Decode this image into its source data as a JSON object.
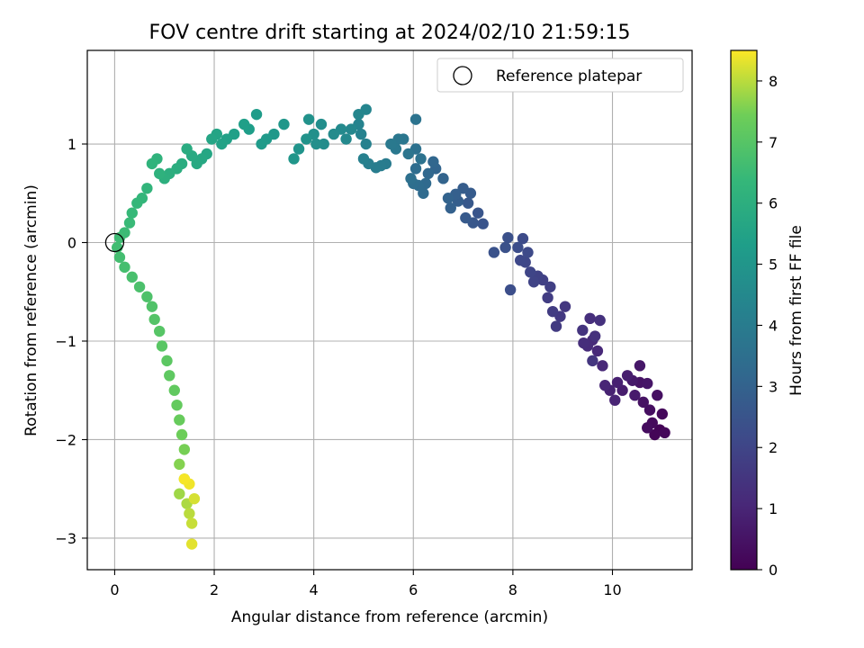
{
  "chart_data": {
    "type": "scatter",
    "title": "FOV centre drift starting at 2024/02/10 21:59:15",
    "xlabel": "Angular distance from reference (arcmin)",
    "ylabel": "Rotation from reference (arcmin)",
    "colorbar_label": "Hours from first FF file",
    "colormap": "viridis",
    "xlim": [
      -0.55,
      11.6
    ],
    "ylim": [
      -3.32,
      1.95
    ],
    "clim": [
      0,
      8.5
    ],
    "xticks": [
      0,
      2,
      4,
      6,
      8,
      10
    ],
    "yticks": [
      -3,
      -2,
      -1,
      0,
      1
    ],
    "cticks": [
      0,
      1,
      2,
      3,
      4,
      5,
      6,
      7,
      8
    ],
    "grid": true,
    "legend": {
      "placement": "top-right",
      "entries": [
        "Reference platepar"
      ]
    },
    "reference_point": {
      "x": 0,
      "y": 0
    },
    "points": [
      [
        10.95,
        -1.9,
        0.05
      ],
      [
        10.85,
        -1.95,
        0.1
      ],
      [
        11.05,
        -1.93,
        0.15
      ],
      [
        11.0,
        -1.74,
        0.2
      ],
      [
        10.8,
        -1.83,
        0.25
      ],
      [
        10.7,
        -1.88,
        0.3
      ],
      [
        10.75,
        -1.7,
        0.35
      ],
      [
        10.9,
        -1.55,
        0.4
      ],
      [
        10.62,
        -1.62,
        0.45
      ],
      [
        10.55,
        -1.42,
        0.5
      ],
      [
        10.7,
        -1.43,
        0.55
      ],
      [
        10.55,
        -1.25,
        0.6
      ],
      [
        10.4,
        -1.4,
        0.65
      ],
      [
        10.45,
        -1.55,
        0.7
      ],
      [
        10.2,
        -1.5,
        0.75
      ],
      [
        10.3,
        -1.35,
        0.8
      ],
      [
        10.1,
        -1.42,
        0.85
      ],
      [
        9.95,
        -1.5,
        0.9
      ],
      [
        10.05,
        -1.6,
        0.95
      ],
      [
        9.85,
        -1.45,
        1.0
      ],
      [
        9.8,
        -1.25,
        1.05
      ],
      [
        9.7,
        -1.1,
        1.1
      ],
      [
        9.6,
        -0.99,
        1.15
      ],
      [
        9.5,
        -1.05,
        1.2
      ],
      [
        9.42,
        -1.02,
        1.25
      ],
      [
        9.55,
        -0.77,
        1.3
      ],
      [
        9.75,
        -0.79,
        1.35
      ],
      [
        9.65,
        -0.95,
        1.4
      ],
      [
        9.4,
        -0.89,
        1.45
      ],
      [
        9.6,
        -1.2,
        1.5
      ],
      [
        9.05,
        -0.65,
        1.55
      ],
      [
        8.95,
        -0.75,
        1.6
      ],
      [
        8.87,
        -0.85,
        1.65
      ],
      [
        8.8,
        -0.7,
        1.7
      ],
      [
        8.7,
        -0.56,
        1.75
      ],
      [
        8.75,
        -0.45,
        1.8
      ],
      [
        8.6,
        -0.38,
        1.85
      ],
      [
        8.5,
        -0.34,
        1.9
      ],
      [
        8.42,
        -0.4,
        1.95
      ],
      [
        8.35,
        -0.3,
        2.0
      ],
      [
        8.25,
        -0.2,
        2.05
      ],
      [
        8.15,
        -0.18,
        2.1
      ],
      [
        8.3,
        -0.1,
        2.15
      ],
      [
        8.2,
        0.04,
        2.2
      ],
      [
        8.1,
        -0.05,
        2.25
      ],
      [
        7.95,
        -0.48,
        2.3
      ],
      [
        7.9,
        0.05,
        2.35
      ],
      [
        7.85,
        -0.05,
        2.4
      ],
      [
        7.62,
        -0.1,
        2.45
      ],
      [
        7.4,
        0.19,
        2.5
      ],
      [
        7.3,
        0.3,
        2.55
      ],
      [
        7.2,
        0.2,
        2.6
      ],
      [
        7.1,
        0.4,
        2.65
      ],
      [
        7.05,
        0.25,
        2.7
      ],
      [
        7.15,
        0.5,
        2.75
      ],
      [
        7.0,
        0.55,
        2.8
      ],
      [
        6.9,
        0.42,
        2.85
      ],
      [
        6.85,
        0.49,
        2.9
      ],
      [
        6.75,
        0.35,
        2.95
      ],
      [
        6.7,
        0.45,
        3.0
      ],
      [
        6.6,
        0.65,
        3.05
      ],
      [
        6.45,
        0.75,
        3.1
      ],
      [
        6.4,
        0.82,
        3.15
      ],
      [
        6.3,
        0.7,
        3.2
      ],
      [
        6.25,
        0.6,
        3.25
      ],
      [
        6.2,
        0.5,
        3.3
      ],
      [
        6.1,
        0.58,
        3.35
      ],
      [
        6.05,
        0.75,
        3.4
      ],
      [
        6.0,
        0.6,
        3.45
      ],
      [
        5.95,
        0.65,
        3.5
      ],
      [
        6.05,
        0.95,
        3.55
      ],
      [
        6.15,
        0.85,
        3.6
      ],
      [
        6.05,
        1.25,
        3.65
      ],
      [
        5.9,
        0.9,
        3.7
      ],
      [
        5.8,
        1.05,
        3.75
      ],
      [
        5.7,
        1.05,
        3.8
      ],
      [
        5.65,
        0.95,
        3.85
      ],
      [
        5.55,
        1.0,
        3.9
      ],
      [
        5.45,
        0.8,
        3.95
      ],
      [
        5.35,
        0.78,
        4.0
      ],
      [
        5.25,
        0.76,
        4.05
      ],
      [
        5.1,
        0.8,
        4.1
      ],
      [
        5.0,
        0.85,
        4.15
      ],
      [
        5.05,
        1.0,
        4.2
      ],
      [
        4.95,
        1.1,
        4.25
      ],
      [
        4.9,
        1.2,
        4.3
      ],
      [
        5.05,
        1.35,
        4.35
      ],
      [
        4.9,
        1.3,
        4.4
      ],
      [
        4.75,
        1.15,
        4.45
      ],
      [
        4.65,
        1.05,
        4.5
      ],
      [
        4.55,
        1.15,
        4.55
      ],
      [
        4.4,
        1.1,
        4.6
      ],
      [
        4.2,
        1.0,
        4.65
      ],
      [
        4.15,
        1.2,
        4.7
      ],
      [
        4.05,
        1.0,
        4.75
      ],
      [
        4.0,
        1.1,
        4.8
      ],
      [
        3.9,
        1.25,
        4.85
      ],
      [
        3.85,
        1.05,
        4.9
      ],
      [
        3.7,
        0.95,
        4.95
      ],
      [
        3.6,
        0.85,
        5.0
      ],
      [
        3.4,
        1.2,
        5.05
      ],
      [
        3.2,
        1.1,
        5.1
      ],
      [
        3.05,
        1.05,
        5.15
      ],
      [
        2.95,
        1.0,
        5.2
      ],
      [
        2.85,
        1.3,
        5.25
      ],
      [
        2.7,
        1.15,
        5.3
      ],
      [
        2.6,
        1.2,
        5.35
      ],
      [
        2.4,
        1.1,
        5.4
      ],
      [
        2.25,
        1.05,
        5.45
      ],
      [
        2.15,
        1.0,
        5.5
      ],
      [
        2.05,
        1.1,
        5.55
      ],
      [
        1.95,
        1.05,
        5.6
      ],
      [
        1.85,
        0.9,
        5.65
      ],
      [
        1.75,
        0.85,
        5.7
      ],
      [
        1.65,
        0.8,
        5.75
      ],
      [
        1.55,
        0.88,
        5.8
      ],
      [
        1.45,
        0.95,
        5.85
      ],
      [
        1.35,
        0.8,
        5.9
      ],
      [
        1.25,
        0.75,
        5.95
      ],
      [
        1.1,
        0.7,
        6.0
      ],
      [
        1.0,
        0.65,
        6.05
      ],
      [
        0.9,
        0.7,
        6.1
      ],
      [
        0.85,
        0.85,
        6.15
      ],
      [
        0.75,
        0.8,
        6.2
      ],
      [
        0.65,
        0.55,
        6.25
      ],
      [
        0.55,
        0.45,
        6.3
      ],
      [
        0.45,
        0.4,
        6.35
      ],
      [
        0.35,
        0.3,
        6.4
      ],
      [
        0.3,
        0.2,
        6.45
      ],
      [
        0.2,
        0.1,
        6.5
      ],
      [
        0.1,
        0.05,
        6.55
      ],
      [
        0.05,
        -0.05,
        6.6
      ],
      [
        0.1,
        -0.15,
        6.65
      ],
      [
        0.2,
        -0.25,
        6.7
      ],
      [
        0.35,
        -0.35,
        6.75
      ],
      [
        0.5,
        -0.45,
        6.8
      ],
      [
        0.65,
        -0.55,
        6.85
      ],
      [
        0.75,
        -0.65,
        6.9
      ],
      [
        0.8,
        -0.78,
        6.95
      ],
      [
        0.9,
        -0.9,
        7.0
      ],
      [
        0.95,
        -1.05,
        7.05
      ],
      [
        1.05,
        -1.2,
        7.1
      ],
      [
        1.1,
        -1.35,
        7.15
      ],
      [
        1.2,
        -1.5,
        7.2
      ],
      [
        1.25,
        -1.65,
        7.25
      ],
      [
        1.3,
        -1.8,
        7.3
      ],
      [
        1.35,
        -1.95,
        7.4
      ],
      [
        1.4,
        -2.1,
        7.5
      ],
      [
        1.3,
        -2.25,
        7.6
      ],
      [
        1.4,
        -2.4,
        7.7
      ],
      [
        1.3,
        -2.55,
        7.8
      ],
      [
        1.45,
        -2.65,
        7.9
      ],
      [
        1.5,
        -2.75,
        8.0
      ],
      [
        1.55,
        -2.85,
        8.1
      ],
      [
        1.6,
        -2.6,
        8.2
      ],
      [
        1.55,
        -3.06,
        8.3
      ],
      [
        1.5,
        -2.45,
        8.4
      ],
      [
        1.4,
        -2.4,
        8.45
      ]
    ]
  }
}
